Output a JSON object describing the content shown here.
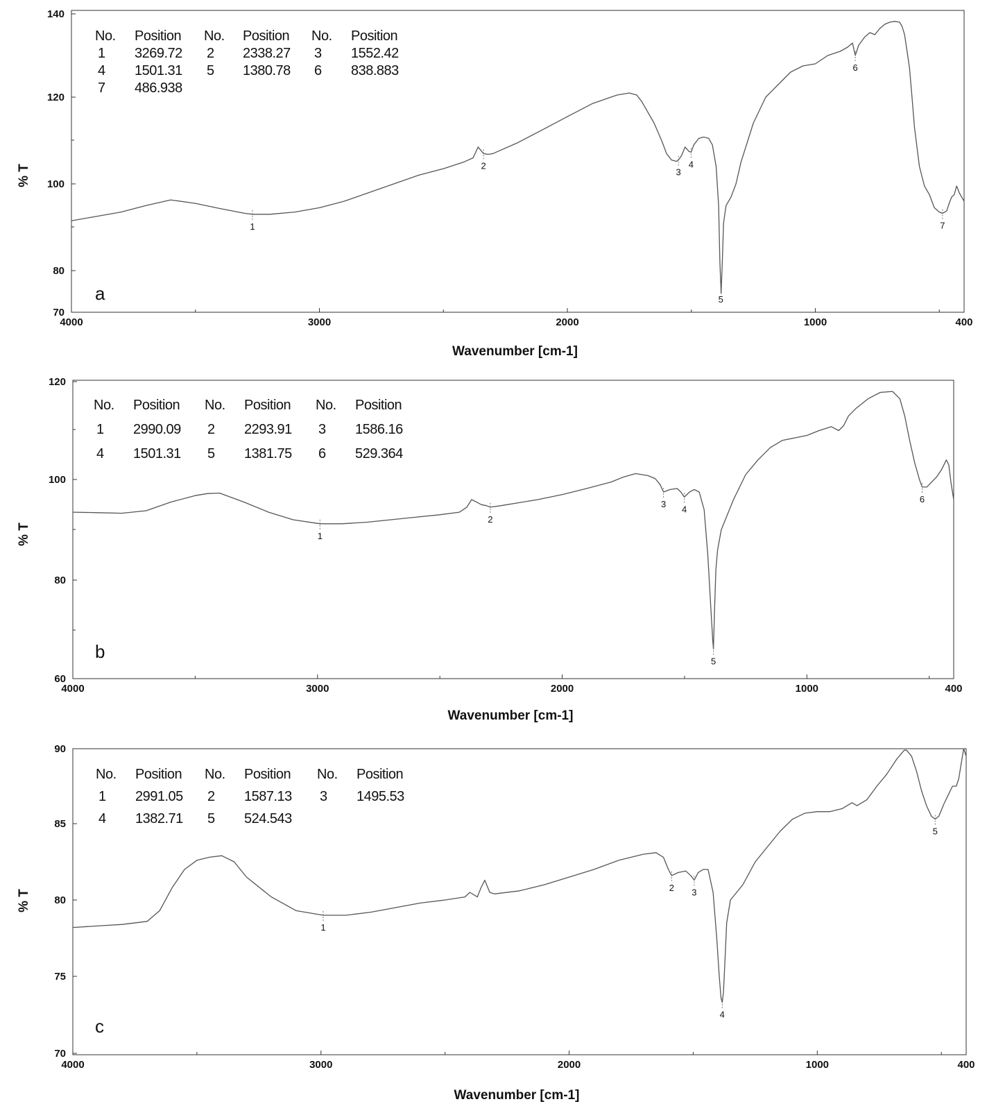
{
  "chart_data": [
    {
      "type": "line",
      "panel_label": "a",
      "xlabel": "Wavenumber [cm-1]",
      "ylabel": "% T",
      "xlim": [
        4000,
        400
      ],
      "ylim": [
        70,
        140
      ],
      "x_ticks": [
        "4000",
        "3000",
        "2000",
        "1000",
        "400"
      ],
      "y_ticks": [
        "70",
        "80",
        "100",
        "120",
        "140"
      ],
      "table_header": [
        "No.",
        "Position"
      ],
      "peak_table": [
        {
          "no": "1",
          "position": "3269.72"
        },
        {
          "no": "2",
          "position": "2338.27"
        },
        {
          "no": "3",
          "position": "1552.42"
        },
        {
          "no": "4",
          "position": "1501.31"
        },
        {
          "no": "5",
          "position": "1380.78"
        },
        {
          "no": "6",
          "position": "838.883"
        },
        {
          "no": "7",
          "position": "486.938"
        }
      ],
      "series": [
        {
          "x": [
            4000,
            3900,
            3800,
            3700,
            3600,
            3500,
            3400,
            3300,
            3270,
            3200,
            3100,
            3000,
            2900,
            2800,
            2700,
            2600,
            2500,
            2420,
            2380,
            2360,
            2338,
            2320,
            2300,
            2200,
            2100,
            2000,
            1900,
            1800,
            1750,
            1720,
            1700,
            1680,
            1650,
            1620,
            1600,
            1580,
            1560,
            1552,
            1540,
            1525,
            1510,
            1501,
            1490,
            1470,
            1450,
            1430,
            1415,
            1400,
            1390,
            1385,
            1380,
            1375,
            1370,
            1360,
            1340,
            1320,
            1300,
            1250,
            1200,
            1150,
            1100,
            1050,
            1000,
            950,
            900,
            870,
            850,
            839,
            825,
            800,
            780,
            760,
            740,
            720,
            700,
            680,
            660,
            650,
            640,
            630,
            620,
            610,
            600,
            580,
            560,
            540,
            520,
            500,
            487,
            470,
            460,
            450,
            440,
            430,
            420,
            410,
            400
          ],
          "y": [
            91.5,
            92.5,
            93.5,
            95,
            96.3,
            95.5,
            94.3,
            93.2,
            93,
            93,
            93.5,
            94.5,
            96,
            98,
            100,
            102,
            103.5,
            105,
            106,
            108.5,
            107,
            106.8,
            107,
            109.5,
            112.5,
            115.5,
            118.5,
            120.5,
            121,
            120.5,
            119,
            117,
            114,
            110,
            107,
            105.5,
            105.2,
            105.5,
            106.5,
            108.5,
            107.5,
            107.3,
            109,
            110.5,
            110.8,
            110.5,
            109,
            104,
            95,
            82,
            74.5,
            82,
            91,
            95,
            97,
            100,
            105,
            114,
            120,
            123,
            126,
            127.5,
            128,
            130,
            131,
            132,
            133,
            130,
            132.5,
            134.5,
            135.5,
            135,
            136.5,
            137.5,
            138,
            138.2,
            138,
            137,
            135,
            131,
            127,
            120,
            113,
            104,
            99.5,
            97.5,
            94.5,
            93.5,
            93.2,
            93.8,
            95.5,
            97,
            97.5,
            99.5,
            98,
            97,
            96
          ]
        }
      ],
      "peak_markers": [
        {
          "label": "1",
          "x": 3270
        },
        {
          "label": "2",
          "x": 2338
        },
        {
          "label": "3",
          "x": 1552
        },
        {
          "label": "4",
          "x": 1501
        },
        {
          "label": "5",
          "x": 1381
        },
        {
          "label": "6",
          "x": 839
        },
        {
          "label": "7",
          "x": 487
        }
      ]
    },
    {
      "type": "line",
      "panel_label": "b",
      "xlabel": "Wavenumber [cm-1]",
      "ylabel": "% T",
      "xlim": [
        4000,
        400
      ],
      "ylim": [
        60,
        120
      ],
      "x_ticks": [
        "4000",
        "3000",
        "2000",
        "1000",
        "400"
      ],
      "y_ticks": [
        "60",
        "80",
        "100",
        "120"
      ],
      "table_header": [
        "No.",
        "Position"
      ],
      "peak_table": [
        {
          "no": "1",
          "position": "2990.09"
        },
        {
          "no": "2",
          "position": "2293.91"
        },
        {
          "no": "3",
          "position": "1586.16"
        },
        {
          "no": "4",
          "position": "1501.31"
        },
        {
          "no": "5",
          "position": "1381.75"
        },
        {
          "no": "6",
          "position": "529.364"
        }
      ],
      "series": [
        {
          "x": [
            4000,
            3900,
            3800,
            3700,
            3600,
            3500,
            3450,
            3400,
            3300,
            3200,
            3100,
            2990,
            2900,
            2800,
            2700,
            2600,
            2500,
            2420,
            2390,
            2370,
            2350,
            2330,
            2310,
            2294,
            2250,
            2100,
            2000,
            1900,
            1800,
            1750,
            1700,
            1650,
            1620,
            1600,
            1586,
            1560,
            1530,
            1515,
            1501,
            1480,
            1460,
            1440,
            1420,
            1405,
            1392,
            1385,
            1382,
            1378,
            1372,
            1365,
            1350,
            1300,
            1250,
            1200,
            1150,
            1100,
            1050,
            1000,
            950,
            900,
            870,
            850,
            830,
            800,
            750,
            700,
            650,
            620,
            600,
            580,
            560,
            540,
            529,
            510,
            490,
            470,
            450,
            430,
            420,
            410,
            400
          ],
          "y": [
            93.5,
            93.4,
            93.3,
            93.8,
            95.5,
            96.8,
            97.2,
            97.3,
            95.5,
            93.5,
            92,
            91.2,
            91.2,
            91.5,
            92,
            92.5,
            93,
            93.5,
            94.5,
            96,
            95.5,
            95,
            94.8,
            94.5,
            94.8,
            96,
            97,
            98.2,
            99.5,
            100.5,
            101.2,
            100.8,
            100.2,
            99,
            97.5,
            98,
            98.2,
            97.5,
            96.5,
            97.5,
            98,
            97.5,
            94,
            85,
            74,
            68,
            66,
            73,
            82,
            86,
            90,
            96,
            101,
            104,
            106.5,
            108,
            108.5,
            109,
            110,
            110.8,
            110,
            111,
            113,
            114.5,
            116.5,
            117.8,
            118,
            116.5,
            113,
            108,
            103.5,
            100,
            98.5,
            98.5,
            99.5,
            100.5,
            102,
            104,
            103,
            99,
            96
          ]
        }
      ],
      "peak_markers": [
        {
          "label": "1",
          "x": 2990
        },
        {
          "label": "2",
          "x": 2294
        },
        {
          "label": "3",
          "x": 1586
        },
        {
          "label": "4",
          "x": 1501
        },
        {
          "label": "5",
          "x": 1382
        },
        {
          "label": "6",
          "x": 529
        }
      ]
    },
    {
      "type": "line",
      "panel_label": "c",
      "xlabel": "Wavenumber [cm-1]",
      "ylabel": "% T",
      "xlim": [
        4000,
        400
      ],
      "ylim": [
        70,
        90
      ],
      "x_ticks": [
        "4000",
        "3000",
        "2000",
        "1000",
        "400"
      ],
      "y_ticks": [
        "70",
        "75",
        "80",
        "85",
        "90"
      ],
      "table_header": [
        "No.",
        "Position"
      ],
      "peak_table": [
        {
          "no": "1",
          "position": "2991.05"
        },
        {
          "no": "2",
          "position": "1587.13"
        },
        {
          "no": "3",
          "position": "1495.53"
        },
        {
          "no": "4",
          "position": "1382.71"
        },
        {
          "no": "5",
          "position": "524.543"
        }
      ],
      "series": [
        {
          "x": [
            4000,
            3900,
            3800,
            3700,
            3650,
            3600,
            3550,
            3500,
            3450,
            3400,
            3350,
            3300,
            3200,
            3100,
            2991,
            2900,
            2800,
            2700,
            2600,
            2500,
            2420,
            2400,
            2370,
            2355,
            2340,
            2320,
            2300,
            2200,
            2100,
            2000,
            1900,
            1800,
            1700,
            1650,
            1620,
            1600,
            1587,
            1560,
            1530,
            1510,
            1496,
            1480,
            1460,
            1440,
            1420,
            1405,
            1395,
            1388,
            1383,
            1378,
            1372,
            1365,
            1350,
            1300,
            1250,
            1200,
            1150,
            1100,
            1050,
            1000,
            950,
            900,
            880,
            860,
            840,
            800,
            760,
            720,
            680,
            650,
            640,
            620,
            600,
            580,
            560,
            540,
            525,
            510,
            490,
            470,
            455,
            440,
            430,
            420,
            410,
            400
          ],
          "y": [
            78.2,
            78.3,
            78.4,
            78.6,
            79.3,
            80.8,
            82,
            82.6,
            82.8,
            82.9,
            82.5,
            81.5,
            80.2,
            79.3,
            79,
            79,
            79.2,
            79.5,
            79.8,
            80,
            80.2,
            80.5,
            80.2,
            80.8,
            81.3,
            80.5,
            80.4,
            80.6,
            81,
            81.5,
            82,
            82.6,
            83,
            83.1,
            82.8,
            82,
            81.6,
            81.8,
            81.9,
            81.6,
            81.3,
            81.8,
            82,
            82,
            80.5,
            77.5,
            75,
            73.6,
            73.3,
            74,
            76,
            78.5,
            80,
            81,
            82.5,
            83.5,
            84.5,
            85.3,
            85.7,
            85.8,
            85.8,
            86,
            86.2,
            86.4,
            86.2,
            86.6,
            87.5,
            88.3,
            89.3,
            89.9,
            89.9,
            89.5,
            88.5,
            87.2,
            86.2,
            85.5,
            85.3,
            85.5,
            86.3,
            87,
            87.5,
            87.5,
            88,
            89,
            90,
            89.5
          ]
        }
      ],
      "peak_markers": [
        {
          "label": "1",
          "x": 2991
        },
        {
          "label": "2",
          "x": 1587
        },
        {
          "label": "3",
          "x": 1496
        },
        {
          "label": "4",
          "x": 1383
        },
        {
          "label": "5",
          "x": 525
        }
      ]
    }
  ]
}
